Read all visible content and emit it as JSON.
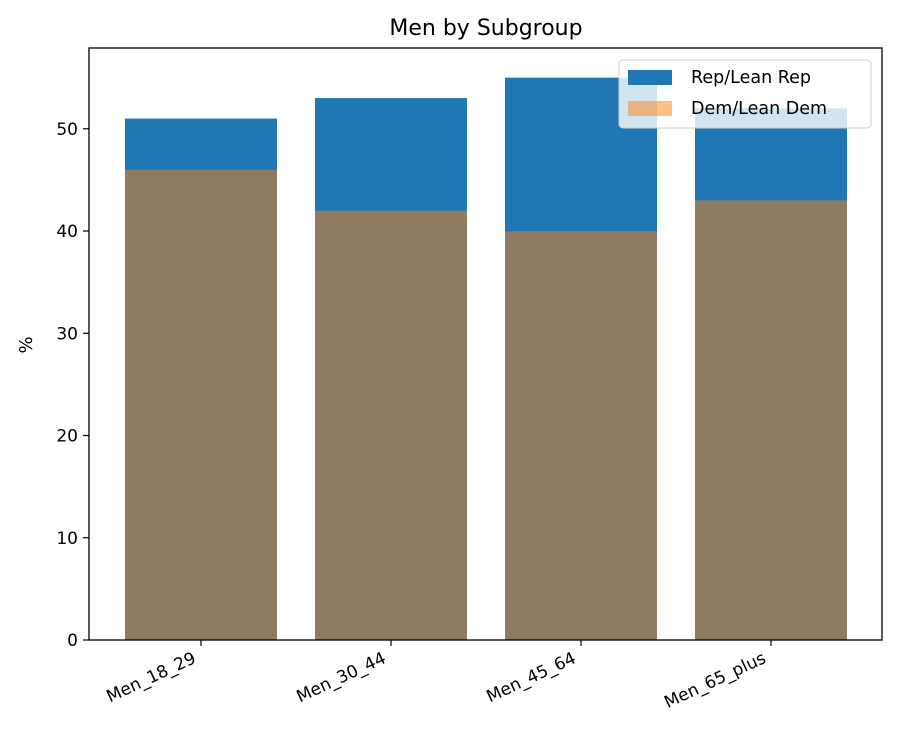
{
  "chart_data": {
    "type": "bar",
    "title": "Men by Subgroup",
    "xlabel": "",
    "ylabel": "%",
    "categories": [
      "Men_18_29",
      "Men_30_44",
      "Men_45_64",
      "Men_65_plus"
    ],
    "series": [
      {
        "name": "Rep/Lean Rep",
        "values": [
          51,
          53,
          55,
          52
        ],
        "color": "#1f77b4",
        "opacity": 1
      },
      {
        "name": "Dem/Lean Dem",
        "values": [
          46,
          42,
          40,
          43
        ],
        "color": "#ff7f0e",
        "opacity": 0.5
      }
    ],
    "ylim": [
      0,
      57.9
    ],
    "yticks": [
      0,
      10,
      20,
      30,
      40,
      50
    ],
    "grid": false,
    "legend_position": "top-right",
    "bar_overlap": true
  }
}
